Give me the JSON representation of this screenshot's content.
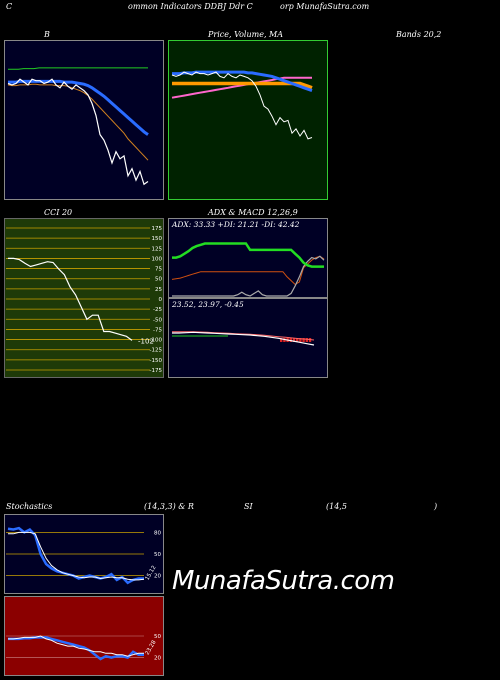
{
  "header": {
    "left": "C",
    "mid": "ommon  Indicators DDBJ Ddr C",
    "right": "orp MunafaSutra.com"
  },
  "row1": {
    "bb_label": "B",
    "price_label": "Price,  Volume,  MA",
    "bands_label": "Bands 20,2"
  },
  "row2": {
    "cci_label": "CCI 20",
    "adx_label": "ADX  & MACD 12,26,9",
    "adx_readout": "ADX: 33.33  +DI: 21.21 -DI: 42.42",
    "macd_readout": "23.52,  23.97,  -0.45"
  },
  "row3": {
    "stoch_label": "Stochastics",
    "stoch_params": "(14,3,3) & R",
    "rsi_label": "SI",
    "rsi_params": "(14,5",
    "rsi_close": ")"
  },
  "watermark": "MunafaSutra.com",
  "colors": {
    "panel_dark": "#000025",
    "price_bg": "#002200",
    "cci_bg": "#1e3a08",
    "rsi_bg": "#8b0000",
    "grid_gold": "#c8a000"
  },
  "chart_data": [
    {
      "type": "line",
      "name": "bollinger-bands",
      "x": [
        1,
        2,
        3,
        4,
        5,
        6,
        7,
        8,
        9,
        10,
        11,
        12,
        13,
        14,
        15,
        16,
        17,
        18,
        19,
        20,
        21,
        22,
        23,
        24,
        25,
        26,
        27,
        28,
        29,
        30,
        31,
        32,
        33,
        34,
        35,
        36
      ],
      "series": [
        {
          "values": [
            50,
            48,
            50,
            56,
            52,
            48,
            56,
            54,
            54,
            50,
            52,
            56,
            48,
            44,
            52,
            46,
            42,
            48,
            44,
            40,
            34,
            22,
            5,
            -22,
            -30,
            -44,
            -62,
            -46,
            -56,
            -52,
            -80,
            -70,
            -86,
            -74,
            -92,
            -88
          ]
        },
        {
          "values": [
            70,
            70,
            70,
            71,
            71,
            71,
            72,
            72,
            72,
            72,
            72,
            72,
            72,
            72,
            72,
            72,
            72,
            72,
            72,
            72,
            72,
            72,
            72,
            72,
            72,
            72,
            72,
            72,
            72,
            72,
            72,
            72,
            72,
            72,
            72,
            72
          ]
        },
        {
          "values": [
            52,
            52,
            52,
            53,
            53,
            53,
            53,
            53,
            53,
            53,
            53,
            53,
            53,
            53,
            52,
            52,
            52,
            51,
            50,
            49,
            47,
            44,
            40,
            36,
            32,
            27,
            22,
            17,
            12,
            7,
            2,
            -3,
            -8,
            -13,
            -18,
            -22
          ]
        },
        {
          "values": [
            48,
            47,
            47,
            48,
            48,
            48,
            49,
            49,
            48,
            48,
            48,
            48,
            47,
            47,
            47,
            46,
            44,
            42,
            40,
            37,
            33,
            28,
            22,
            16,
            10,
            4,
            -2,
            -8,
            -14,
            -20,
            -28,
            -34,
            -40,
            -46,
            -52,
            -58
          ]
        }
      ],
      "ylim": [
        -100,
        100
      ]
    },
    {
      "type": "line",
      "name": "price-volume-ma",
      "series": [
        {
          "values": [
            62,
            60,
            62,
            66,
            64,
            62,
            66,
            64,
            64,
            62,
            64,
            66,
            60,
            58,
            64,
            60,
            58,
            62,
            60,
            58,
            54,
            46,
            34,
            18,
            14,
            4,
            -8,
            2,
            -4,
            -2,
            -20,
            -14,
            -24,
            -16,
            -28,
            -26
          ]
        },
        {
          "values": [
            64,
            64,
            64,
            65,
            65,
            65,
            66,
            66,
            66,
            66,
            66,
            66,
            66,
            66,
            66,
            66,
            66,
            66,
            66,
            65,
            65,
            64,
            63,
            62,
            61,
            60,
            58,
            56,
            54,
            52,
            50,
            48,
            46,
            44,
            42,
            40
          ]
        },
        {
          "values": [
            50,
            50,
            50,
            50,
            50,
            50,
            50,
            50,
            50,
            50,
            50,
            50,
            50,
            50,
            50,
            50,
            50,
            50,
            50,
            50,
            50,
            50,
            50,
            50,
            50,
            50,
            50,
            50,
            50,
            50,
            50,
            50,
            50,
            48,
            46,
            44
          ]
        },
        {
          "values": [
            30,
            31,
            32,
            33,
            34,
            35,
            36,
            37,
            38,
            39,
            40,
            41,
            42,
            43,
            44,
            45,
            46,
            47,
            48,
            49,
            50,
            51,
            52,
            53,
            54,
            55,
            56,
            57,
            58,
            58,
            58,
            58,
            58,
            58,
            58,
            58
          ]
        }
      ],
      "ylim": [
        -100,
        100
      ]
    },
    {
      "type": "line",
      "name": "cci-20",
      "y_ticks": [
        175,
        150,
        125,
        100,
        75,
        50,
        25,
        0,
        -25,
        -50,
        -75,
        -100,
        -125,
        -150,
        -175
      ],
      "series": [
        {
          "values": [
            100,
            100,
            97,
            88,
            80,
            84,
            88,
            92,
            90,
            74,
            60,
            30,
            10,
            -20,
            -50,
            -40,
            -40,
            -80,
            -80,
            -84,
            -88,
            -92,
            -102
          ]
        }
      ],
      "end_label": "-102",
      "ylim": [
        -175,
        175
      ]
    },
    {
      "type": "line",
      "name": "adx",
      "series": [
        {
          "values": [
            60,
            60,
            62,
            66,
            70,
            75,
            78,
            80,
            82,
            82,
            82,
            82,
            82,
            82,
            82,
            82,
            82,
            82,
            82,
            72,
            72,
            72,
            72,
            72,
            72,
            72,
            72,
            72,
            72,
            72,
            66,
            60,
            52,
            48,
            46,
            46,
            46,
            46
          ]
        },
        {
          "values": [
            26,
            27,
            28,
            30,
            32,
            34,
            36,
            38,
            38,
            38,
            38,
            38,
            38,
            38,
            38,
            38,
            38,
            38,
            38,
            38,
            38,
            38,
            38,
            38,
            38,
            38,
            38,
            38,
            30,
            24,
            18,
            22,
            44,
            50,
            56,
            60,
            62,
            58
          ]
        },
        {
          "values": [
            0,
            0,
            0,
            0,
            0,
            0,
            0,
            0,
            0,
            0,
            0,
            0,
            0,
            0,
            0,
            0,
            2,
            6,
            2,
            0,
            4,
            8,
            2,
            0,
            0,
            0,
            0,
            0,
            0,
            4,
            16,
            30,
            46,
            54,
            60,
            58,
            62,
            56
          ]
        }
      ],
      "readout": {
        "adx": 33.33,
        "plus_di": 21.21,
        "minus_di": 42.42
      },
      "ylim": [
        0,
        100
      ]
    },
    {
      "type": "line",
      "name": "macd",
      "series": [
        {
          "values": [
            23.5,
            23.5,
            23.6,
            23.7,
            23.6,
            23.5,
            23.4,
            23.3,
            23.2,
            23.1,
            23.0,
            22.9,
            22.7,
            22.5,
            22.2,
            21.9,
            21.5,
            21.1,
            20.7,
            20.3,
            19.9
          ]
        },
        {
          "values": [
            23.9,
            23.9,
            23.9,
            23.9,
            23.8,
            23.7,
            23.6,
            23.5,
            23.4,
            23.3,
            23.2,
            23.1,
            23.0,
            22.8,
            22.6,
            22.4,
            22.2,
            22.0,
            21.8,
            21.6,
            21.4
          ]
        }
      ],
      "readout": {
        "macd": 23.52,
        "signal": 23.97,
        "histogram": -0.45
      }
    },
    {
      "type": "line",
      "name": "stochastics",
      "y_ticks": [
        80,
        50,
        20
      ],
      "series": [
        {
          "values": [
            85,
            84,
            86,
            80,
            84,
            76,
            50,
            36,
            30,
            26,
            24,
            22,
            20,
            16,
            18,
            20,
            18,
            16,
            18,
            22,
            14,
            18,
            10,
            14,
            16,
            16
          ]
        },
        {
          "values": [
            78,
            78,
            80,
            80,
            80,
            78,
            60,
            44,
            34,
            28,
            24,
            22,
            20,
            18,
            17,
            18,
            18,
            16,
            17,
            18,
            17,
            17,
            15,
            14,
            14,
            15
          ]
        }
      ],
      "end_label": "15.12",
      "ylim": [
        0,
        100
      ]
    },
    {
      "type": "line",
      "name": "rsi",
      "y_ticks": [
        50,
        20
      ],
      "series": [
        {
          "values": [
            46,
            46,
            47,
            48,
            48,
            48,
            50,
            46,
            44,
            40,
            38,
            36,
            36,
            33,
            32,
            30,
            28,
            28,
            26,
            26,
            24,
            24,
            22,
            24,
            26,
            26
          ]
        },
        {
          "values": [
            46,
            46,
            46,
            47,
            47,
            48,
            48,
            48,
            46,
            44,
            42,
            40,
            38,
            36,
            34,
            30,
            24,
            18,
            22,
            20,
            22,
            22,
            20,
            28,
            24,
            24
          ]
        }
      ],
      "end_label": "23.28",
      "ylim": [
        0,
        100
      ]
    }
  ]
}
